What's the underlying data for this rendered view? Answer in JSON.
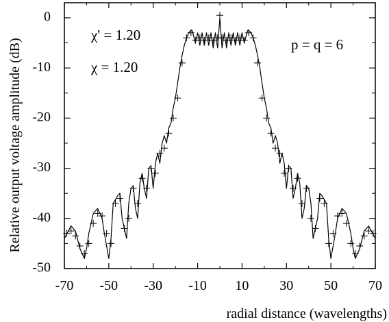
{
  "chart_data": {
    "type": "line",
    "xlabel": "radial distance (wavelengths)",
    "ylabel": "Relative output voltage amplitude (dB)",
    "xlim": [
      -70,
      70
    ],
    "ylim": [
      -50,
      3
    ],
    "xticks": [
      -70,
      -50,
      -30,
      -10,
      10,
      30,
      50,
      70
    ],
    "xtick_labels": [
      "-70",
      "-50",
      "-30",
      "-10",
      "10",
      "30",
      "50",
      "70"
    ],
    "yticks": [
      0,
      -10,
      -20,
      -30,
      -40,
      -50
    ],
    "ytick_labels": [
      "0",
      "-10",
      "-20",
      "-30",
      "-40",
      "-50"
    ],
    "annotations": [
      "χ' = 1.20",
      "χ  = 1.20",
      "p = q = 6"
    ],
    "grid": false,
    "series": [
      {
        "style": "solid-line",
        "x": [
          -70,
          -67,
          -65,
          -63,
          -61,
          -60,
          -59,
          -57,
          -55,
          -53,
          -52,
          -50,
          -49,
          -48,
          -46,
          -45,
          -44,
          -42,
          -41,
          -40,
          -39,
          -38,
          -37,
          -36,
          -35,
          -34,
          -33,
          -32,
          -31,
          -30,
          -29,
          -28,
          -27,
          -26,
          -25,
          -24,
          -23,
          -22,
          -21,
          -20,
          -19,
          -18,
          -17,
          -16,
          -15,
          -14,
          -13,
          -12.5,
          -11,
          -10,
          -9,
          -8,
          -7,
          -6,
          -5,
          -4,
          -3,
          -2,
          -1,
          0,
          1,
          2,
          3,
          4,
          5,
          6,
          7,
          8,
          9,
          10,
          11,
          12.5,
          13,
          14,
          15,
          16,
          17,
          18,
          19,
          20,
          21,
          22,
          23,
          24,
          25,
          26,
          27,
          28,
          29,
          30,
          31,
          32,
          33,
          34,
          35,
          36,
          37,
          38,
          39,
          40,
          41,
          42,
          44,
          45,
          46,
          48,
          49,
          50,
          52,
          53,
          55,
          57,
          59,
          60,
          61,
          63,
          65,
          67,
          70
        ],
        "y": [
          -44,
          -41.5,
          -42.5,
          -46,
          -48,
          -46,
          -43,
          -39,
          -38,
          -40,
          -43,
          -48,
          -44,
          -37,
          -35.5,
          -35,
          -40,
          -44,
          -37,
          -34,
          -33.5,
          -38,
          -40,
          -33,
          -31,
          -34,
          -36,
          -30,
          -29.5,
          -34,
          -29,
          -27,
          -29,
          -25,
          -23.5,
          -25,
          -22,
          -21,
          -18,
          -16,
          -13,
          -10,
          -7.5,
          -5.5,
          -4,
          -3,
          -2.5,
          -2.5,
          -5,
          -3,
          -5.5,
          -3,
          -5.5,
          -3,
          -5.5,
          -3,
          -6,
          -3,
          -6,
          0,
          -6,
          -3,
          -6,
          -3,
          -5.5,
          -3,
          -5.5,
          -3,
          -5.5,
          -3,
          -5,
          -2.5,
          -2.5,
          -3,
          -4,
          -5.5,
          -7.5,
          -10,
          -13,
          -16,
          -18,
          -21,
          -22,
          -25,
          -23.5,
          -25,
          -29,
          -27,
          -29,
          -34,
          -29.5,
          -30,
          -36,
          -34,
          -31,
          -33,
          -40,
          -38,
          -33.5,
          -34,
          -37,
          -44,
          -40,
          -35,
          -35.5,
          -37,
          -44,
          -48,
          -43,
          -40,
          -38,
          -39,
          -43,
          -46,
          -48,
          -46,
          -42.5,
          -41.5,
          -44
        ]
      },
      {
        "style": "plus-markers",
        "x": [
          -69,
          -67,
          -65,
          -63,
          -61,
          -59,
          -57,
          -55,
          -53,
          -51,
          -49,
          -47,
          -45,
          -43,
          -41,
          -39,
          -37,
          -35,
          -33,
          -31,
          -29,
          -27,
          -25,
          -23,
          -21,
          -19,
          -17,
          -15,
          -13,
          -11,
          -9,
          -7,
          -5,
          -3,
          -1,
          0,
          1,
          3,
          5,
          7,
          9,
          11,
          13,
          15,
          17,
          19,
          21,
          23,
          25,
          27,
          29,
          31,
          33,
          35,
          37,
          39,
          41,
          43,
          45,
          47,
          49,
          51,
          53,
          55,
          57,
          59,
          61,
          63,
          65,
          67,
          69
        ],
        "y": [
          -43,
          -42.5,
          -43.5,
          -45.5,
          -47,
          -45,
          -41,
          -39,
          -39.5,
          -43,
          -45,
          -37,
          -36,
          -42,
          -40,
          -34,
          -37,
          -32,
          -34,
          -30,
          -31,
          -27,
          -26,
          -23,
          -20,
          -16,
          -9,
          -4,
          -3,
          -4.5,
          -4,
          -4.5,
          -4,
          -4.5,
          -4,
          0.5,
          -4,
          -4.5,
          -4,
          -4.5,
          -4,
          -4.5,
          -3,
          -4,
          -9,
          -16,
          -20,
          -23,
          -26,
          -27,
          -31,
          -30,
          -34,
          -32,
          -37,
          -34,
          -40,
          -42,
          -36,
          -37,
          -45,
          -43,
          -39.5,
          -39,
          -41,
          -45,
          -47,
          -45.5,
          -43.5,
          -42.5,
          -43
        ]
      }
    ]
  }
}
